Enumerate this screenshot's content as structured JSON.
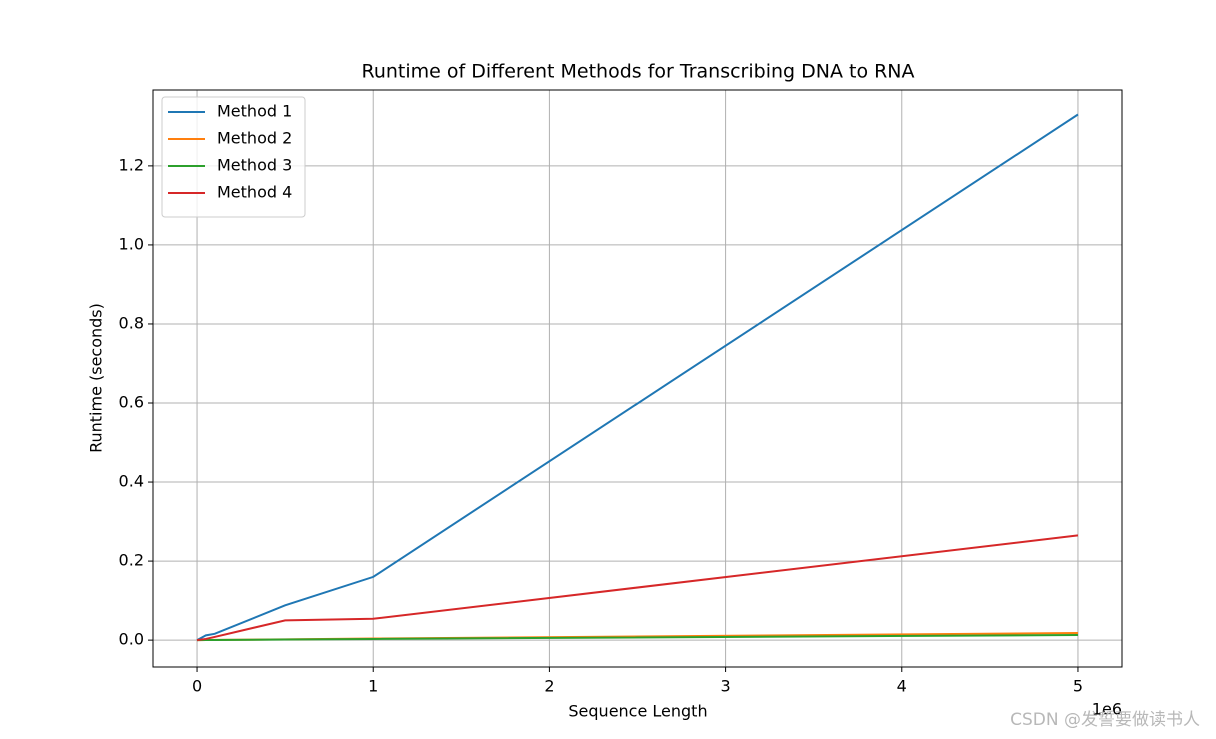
{
  "chart_data": {
    "type": "line",
    "title": "Runtime of Different Methods for Transcribing DNA to RNA",
    "x_label": "Sequence Length",
    "y_label": "Runtime (seconds)",
    "x_offset_label": "1e6",
    "watermark": "CSDN @发誓要做读书人",
    "x": [
      0,
      0.05,
      0.1,
      0.5,
      1,
      5
    ],
    "series": [
      {
        "name": "Method 1",
        "color": "#1f77b4",
        "values": [
          0,
          0.012,
          0.016,
          0.088,
          0.16,
          1.33
        ]
      },
      {
        "name": "Method 2",
        "color": "#ff7f0e",
        "values": [
          0,
          0.0003,
          0.0005,
          0.002,
          0.004,
          0.018
        ]
      },
      {
        "name": "Method 3",
        "color": "#2ca02c",
        "values": [
          0,
          0.0002,
          0.0004,
          0.0015,
          0.003,
          0.013
        ]
      },
      {
        "name": "Method 4",
        "color": "#d62728",
        "values": [
          0,
          0.003,
          0.008,
          0.05,
          0.054,
          0.265
        ]
      }
    ],
    "xlim": [
      -0.25,
      5.25
    ],
    "ylim": [
      -0.068,
      1.392
    ],
    "xticks": [
      0,
      1,
      2,
      3,
      4,
      5
    ],
    "yticks": [
      {
        "value": 0,
        "label": "0.0"
      },
      0.2,
      0.4,
      0.6,
      0.8,
      {
        "value": 1,
        "label": "1.0"
      },
      1.2
    ],
    "grid": true,
    "legend_position": "upper-left"
  }
}
